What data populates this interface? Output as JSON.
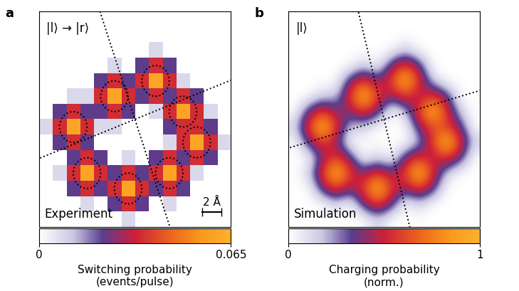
{
  "chart_data": [
    {
      "type": "heatmap",
      "panel": "a",
      "state": "|l⟩ → |r⟩",
      "caption": "Experiment",
      "scale_bar": {
        "length": 2,
        "label": "2 Å"
      },
      "xlim": [
        0,
        20
      ],
      "ylim": [
        0,
        20
      ],
      "tick_labels": false,
      "cells": [
        [
          0,
          0,
          0,
          0,
          0,
          0,
          0,
          0,
          0,
          0,
          0,
          0,
          0,
          0
        ],
        [
          0,
          0,
          0,
          0,
          0,
          0,
          0,
          0,
          0,
          0,
          0,
          0,
          0,
          0
        ],
        [
          0,
          0,
          0,
          0,
          0,
          0,
          0,
          0,
          0.008,
          0,
          0,
          0,
          0,
          0
        ],
        [
          0,
          0,
          0,
          0,
          0,
          0.008,
          0,
          0.022,
          0.035,
          0.022,
          0,
          0,
          0,
          0
        ],
        [
          0,
          0,
          0,
          0,
          0.022,
          0.035,
          0.022,
          0.035,
          0.06,
          0.035,
          0.008,
          0,
          0,
          0
        ],
        [
          0,
          0,
          0.008,
          0.008,
          0.035,
          0.06,
          0.035,
          0.022,
          0.035,
          0.022,
          0.035,
          0.022,
          0,
          0
        ],
        [
          0,
          0.022,
          0.035,
          0.022,
          0.022,
          0.035,
          0.022,
          0,
          0.008,
          0.035,
          0.06,
          0.035,
          0.008,
          0
        ],
        [
          0.008,
          0.035,
          0.06,
          0.035,
          0.008,
          0.008,
          0,
          0,
          0,
          0.022,
          0.035,
          0.035,
          0.022,
          0
        ],
        [
          0,
          0.022,
          0.035,
          0.022,
          0,
          0,
          0,
          0,
          0,
          0.008,
          0.035,
          0.06,
          0.035,
          0.008
        ],
        [
          0,
          0,
          0.022,
          0.035,
          0.022,
          0,
          0.008,
          0,
          0.022,
          0.035,
          0.022,
          0.035,
          0.022,
          0
        ],
        [
          0,
          0.008,
          0.035,
          0.06,
          0.035,
          0.022,
          0.035,
          0.022,
          0.035,
          0.06,
          0.035,
          0.008,
          0,
          0
        ],
        [
          0,
          0,
          0.022,
          0.035,
          0.022,
          0.035,
          0.06,
          0.035,
          0.022,
          0.035,
          0.022,
          0,
          0,
          0
        ],
        [
          0,
          0,
          0,
          0.008,
          0,
          0.022,
          0.035,
          0.022,
          0,
          0.008,
          0,
          0,
          0,
          0
        ],
        [
          0,
          0,
          0,
          0,
          0,
          0,
          0.008,
          0,
          0,
          0,
          0,
          0,
          0,
          0
        ]
      ],
      "colorbar": {
        "range": [
          0,
          0.065
        ],
        "ticks": [
          0,
          0.065
        ],
        "label": "Switching probability\n(events/pulse)"
      }
    },
    {
      "type": "heatmap",
      "panel": "b",
      "state": "|l⟩",
      "caption": "Simulation",
      "xlim": [
        0,
        20
      ],
      "ylim": [
        0,
        20
      ],
      "tick_labels": false,
      "cells": [
        [
          0,
          0,
          0,
          0,
          0,
          0,
          0,
          0,
          0,
          0,
          0,
          0,
          0,
          0
        ],
        [
          0,
          0,
          0,
          0,
          0,
          0,
          0,
          0,
          0,
          0,
          0,
          0,
          0,
          0
        ],
        [
          0,
          0,
          0,
          0,
          0,
          0,
          0,
          0,
          0.15,
          0,
          0,
          0,
          0,
          0
        ],
        [
          0,
          0,
          0,
          0,
          0,
          0.15,
          0,
          0.4,
          0.6,
          0.4,
          0,
          0,
          0,
          0
        ],
        [
          0,
          0,
          0,
          0,
          0.4,
          0.6,
          0.4,
          0.6,
          1,
          0.6,
          0.15,
          0,
          0,
          0
        ],
        [
          0,
          0,
          0.15,
          0.15,
          0.6,
          1,
          0.6,
          0.4,
          0.6,
          0.4,
          0.6,
          0.4,
          0,
          0
        ],
        [
          0,
          0.4,
          0.6,
          0.4,
          0.4,
          0.6,
          0.4,
          0,
          0.15,
          0.6,
          1,
          0.6,
          0.15,
          0
        ],
        [
          0.15,
          0.6,
          1,
          0.6,
          0.15,
          0.15,
          0,
          0,
          0,
          0.4,
          0.6,
          0.6,
          0.4,
          0
        ],
        [
          0,
          0.4,
          0.6,
          0.4,
          0,
          0,
          0,
          0,
          0,
          0.15,
          0.6,
          1,
          0.6,
          0.15
        ],
        [
          0,
          0,
          0.4,
          0.6,
          0.4,
          0,
          0.15,
          0,
          0.4,
          0.6,
          0.4,
          0.6,
          0.4,
          0
        ],
        [
          0,
          0.15,
          0.6,
          1,
          0.6,
          0.4,
          0.6,
          0.4,
          0.6,
          1,
          0.6,
          0.15,
          0,
          0
        ],
        [
          0,
          0,
          0.4,
          0.6,
          0.4,
          0.6,
          1,
          0.6,
          0.4,
          0.6,
          0.4,
          0,
          0,
          0
        ],
        [
          0,
          0,
          0,
          0.15,
          0,
          0.4,
          0.6,
          0.4,
          0,
          0.15,
          0,
          0,
          0,
          0
        ],
        [
          0,
          0,
          0,
          0,
          0,
          0,
          0.15,
          0,
          0,
          0,
          0,
          0,
          0,
          0
        ]
      ],
      "colorbar": {
        "range": [
          0,
          1
        ],
        "ticks": [
          0,
          1
        ],
        "label": "Charging probability\n(norm.)"
      }
    }
  ]
}
